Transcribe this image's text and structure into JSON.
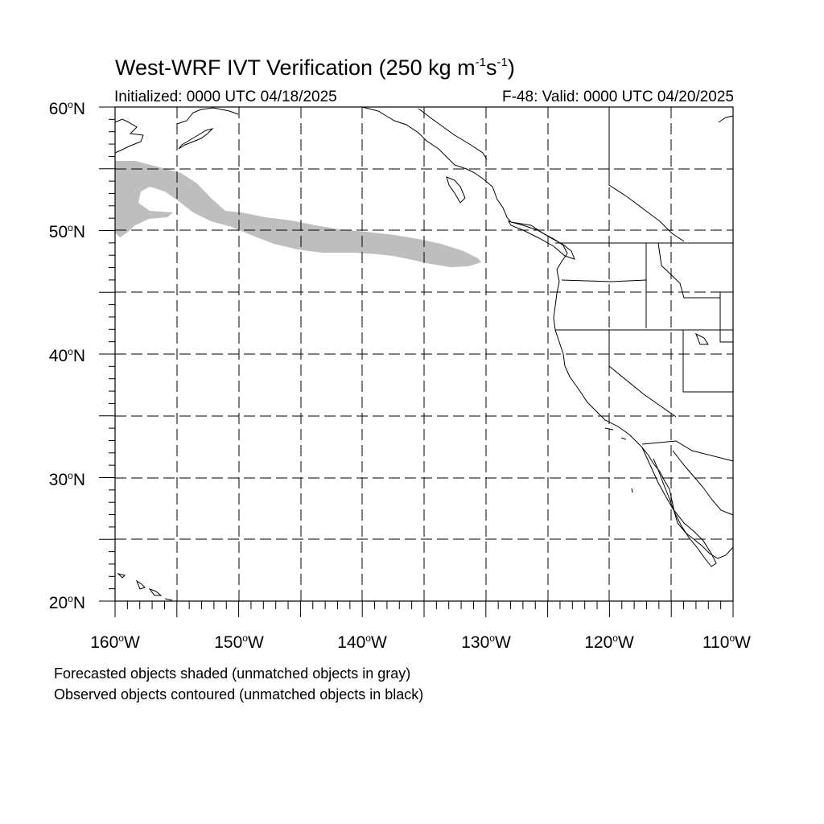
{
  "map": {
    "title": {
      "text": "West-WRF IVT Verification (250 kg m",
      "sup1": "-1",
      "mid": "s",
      "sup2": "-1",
      "end": ")"
    },
    "initialized": "Initialized: 0000 UTC 04/18/2025",
    "valid": "F-48: Valid: 0000 UTC 04/20/2025",
    "extent": {
      "lon_min": -160,
      "lon_max": -110,
      "lat_min": 20,
      "lat_max": 60
    },
    "lat_ticks": [
      {
        "value": 60,
        "label": "60",
        "deg": "o",
        "hemi": "N"
      },
      {
        "value": 50,
        "label": "50",
        "deg": "o",
        "hemi": "N"
      },
      {
        "value": 40,
        "label": "40",
        "deg": "o",
        "hemi": "N"
      },
      {
        "value": 30,
        "label": "30",
        "deg": "o",
        "hemi": "N"
      },
      {
        "value": 20,
        "label": "20",
        "deg": "o",
        "hemi": "N"
      }
    ],
    "lon_ticks": [
      {
        "value": -160,
        "label": "160",
        "deg": "o",
        "hemi": "W"
      },
      {
        "value": -150,
        "label": "150",
        "deg": "o",
        "hemi": "W"
      },
      {
        "value": -140,
        "label": "140",
        "deg": "o",
        "hemi": "W"
      },
      {
        "value": -130,
        "label": "130",
        "deg": "o",
        "hemi": "W"
      },
      {
        "value": -120,
        "label": "120",
        "deg": "o",
        "hemi": "W"
      },
      {
        "value": -110,
        "label": "110",
        "deg": "o",
        "hemi": "W"
      }
    ],
    "gridlines": {
      "lat_step": 5,
      "lon_step": 5,
      "style": "dashed"
    },
    "forecast_object_color": "#bebebe",
    "footnotes": [
      "Forecasted objects shaded (unmatched objects in gray)",
      "Observed objects contoured (unmatched objects in black)"
    ]
  }
}
